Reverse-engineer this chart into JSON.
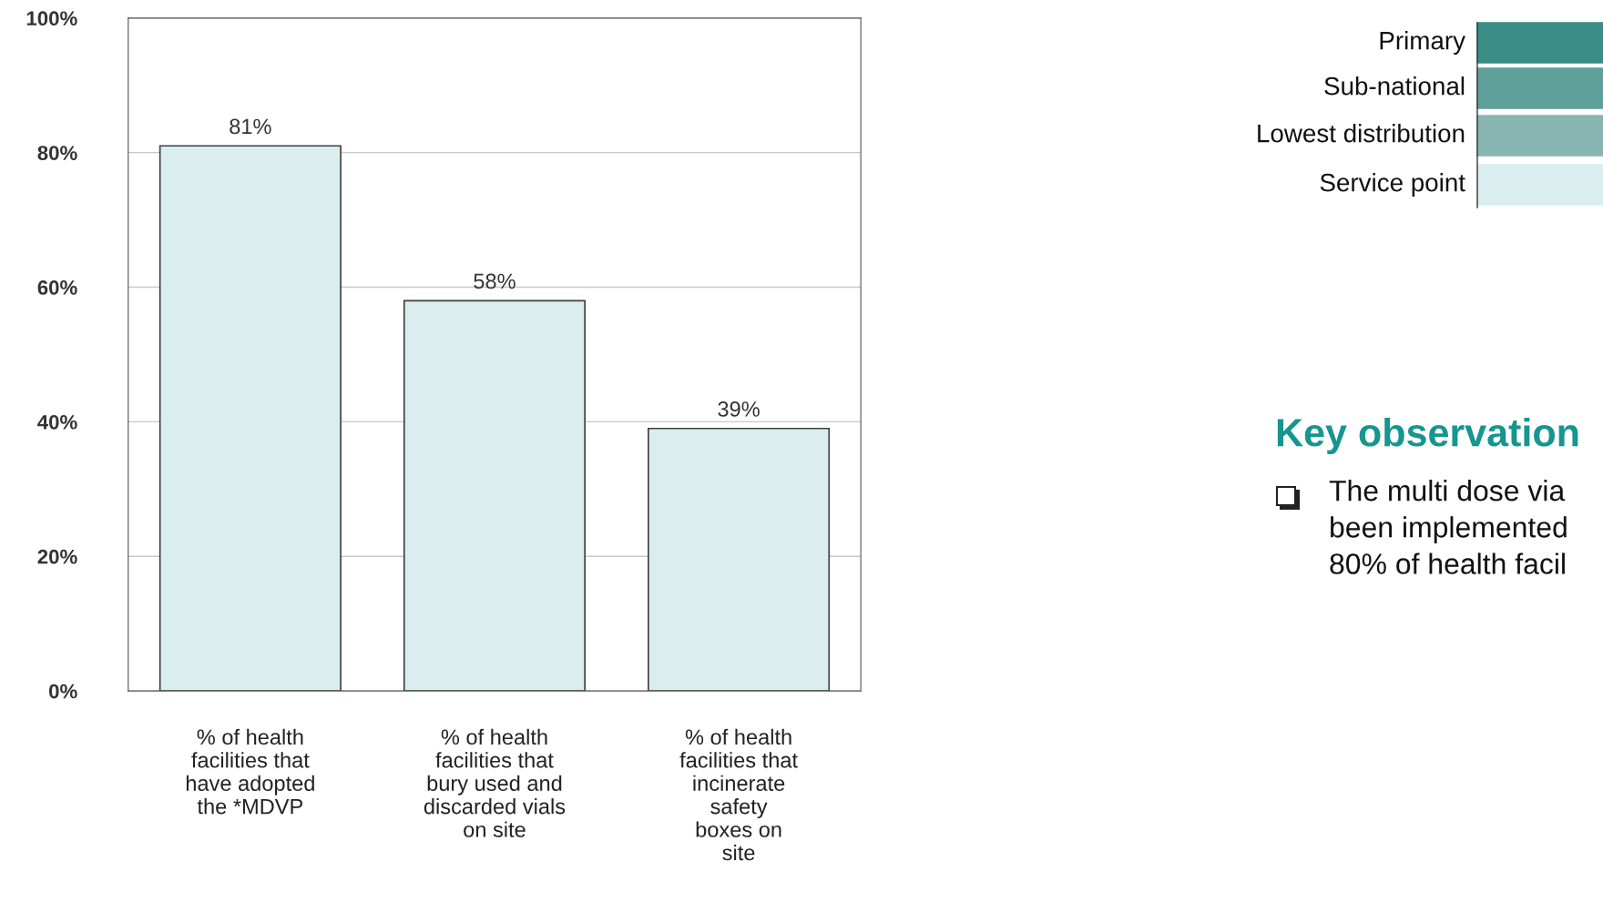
{
  "chart_data": [
    {
      "type": "bar",
      "categories": [
        "% of health\nfacilities that\nhave adopted\nthe *MDVP",
        "% of health\nfacilities that\nbury used and\ndiscarded vials\non site",
        "% of health\nfacilities that\nincinerate\nsafety\nboxes on\nsite"
      ],
      "values": [
        81,
        58,
        39
      ],
      "value_labels": [
        "81%",
        "58%",
        "39%"
      ],
      "color": "#daeef0",
      "ylim": [
        0,
        100
      ],
      "yticks": [
        {
          "value": 0,
          "label": "0%"
        },
        {
          "value": 20,
          "label": "20%"
        },
        {
          "value": 40,
          "label": "40%"
        },
        {
          "value": 60,
          "label": "60%"
        },
        {
          "value": 80,
          "label": "80%"
        },
        {
          "value": 100,
          "label": "100%"
        }
      ],
      "grid": "y"
    },
    {
      "type": "other",
      "title": "Key observation",
      "series": [
        {
          "name": "Primary",
          "color": "#3a8c87"
        },
        {
          "name": "Sub-national",
          "color": "#5fa09b"
        },
        {
          "name": "Lowest distribution",
          "color": "#88b5b2"
        },
        {
          "name": "Service point",
          "color": "#daeef0"
        }
      ],
      "annotations": [
        "The multi dose via\nbeen implemented\n80% of health facil"
      ]
    }
  ]
}
